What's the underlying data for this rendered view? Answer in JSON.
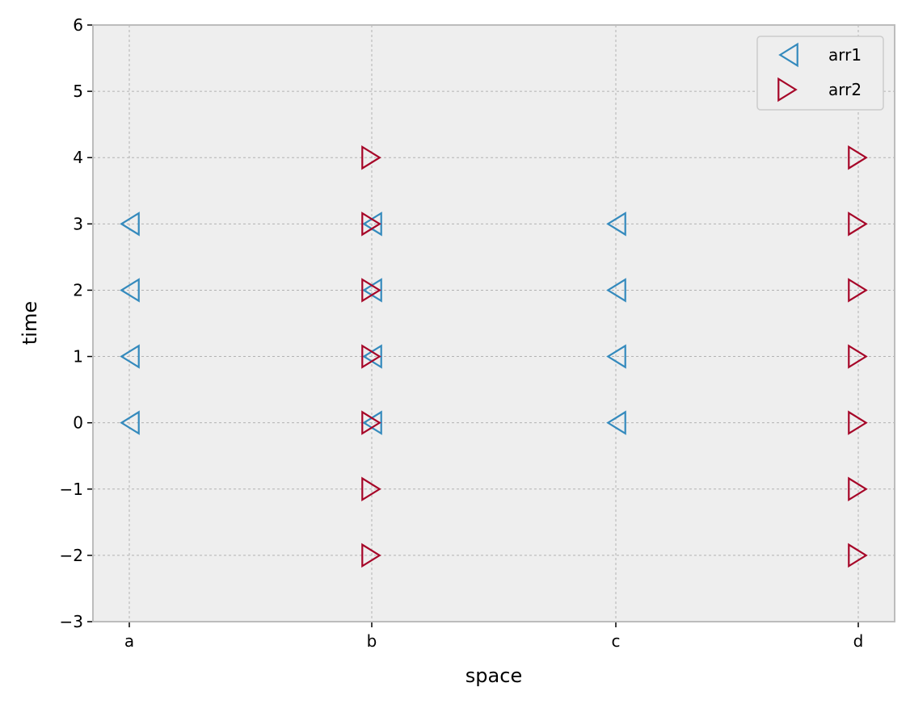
{
  "chart_data": {
    "type": "scatter",
    "xlabel": "space",
    "ylabel": "time",
    "categories": [
      "a",
      "b",
      "c",
      "d"
    ],
    "ylim": [
      -3,
      6
    ],
    "yticks": [
      -3,
      -2,
      -1,
      0,
      1,
      2,
      3,
      4,
      5,
      6
    ],
    "ytick_labels": [
      "−3",
      "−2",
      "−1",
      "0",
      "1",
      "2",
      "3",
      "4",
      "5",
      "6"
    ],
    "grid": true,
    "legend_position": "top-right",
    "series": [
      {
        "name": "arr1",
        "marker": "triangle-left",
        "color": "#348ABD",
        "points": [
          {
            "x": "a",
            "y": 0
          },
          {
            "x": "a",
            "y": 1
          },
          {
            "x": "a",
            "y": 2
          },
          {
            "x": "a",
            "y": 3
          },
          {
            "x": "b",
            "y": 0
          },
          {
            "x": "b",
            "y": 1
          },
          {
            "x": "b",
            "y": 2
          },
          {
            "x": "b",
            "y": 3
          },
          {
            "x": "c",
            "y": 0
          },
          {
            "x": "c",
            "y": 1
          },
          {
            "x": "c",
            "y": 2
          },
          {
            "x": "c",
            "y": 3
          }
        ]
      },
      {
        "name": "arr2",
        "marker": "triangle-right",
        "color": "#A60628",
        "points": [
          {
            "x": "b",
            "y": -2
          },
          {
            "x": "b",
            "y": -1
          },
          {
            "x": "b",
            "y": 0
          },
          {
            "x": "b",
            "y": 1
          },
          {
            "x": "b",
            "y": 2
          },
          {
            "x": "b",
            "y": 3
          },
          {
            "x": "b",
            "y": 4
          },
          {
            "x": "d",
            "y": -2
          },
          {
            "x": "d",
            "y": -1
          },
          {
            "x": "d",
            "y": 0
          },
          {
            "x": "d",
            "y": 1
          },
          {
            "x": "d",
            "y": 2
          },
          {
            "x": "d",
            "y": 3
          },
          {
            "x": "d",
            "y": 4
          }
        ]
      }
    ]
  },
  "style": {
    "axes_facecolor": "#EEEEEE",
    "grid_color": "#B2B2B2",
    "spine_color": "#BCBCBC"
  }
}
